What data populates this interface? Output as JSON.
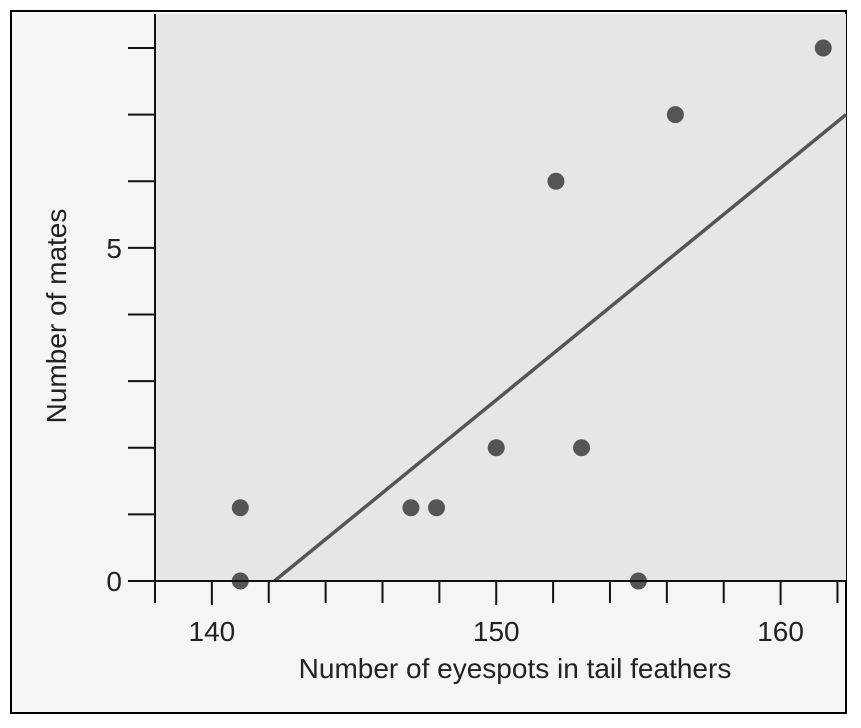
{
  "chart_data": {
    "type": "scatter",
    "title": "",
    "xlabel": "Number of eyespots in tail feathers",
    "ylabel": "Number of mates",
    "xlim": [
      138,
      162.3
    ],
    "ylim": [
      0,
      8.3
    ],
    "x_ticks_labeled": [
      140,
      150,
      160
    ],
    "x_minor_tick_step": 2,
    "y_ticks_labeled": [
      0,
      5
    ],
    "y_minor_tick_step": 1,
    "points": [
      {
        "x": 141,
        "y": 1.1
      },
      {
        "x": 141,
        "y": 0
      },
      {
        "x": 147,
        "y": 1.1
      },
      {
        "x": 147.9,
        "y": 1.1
      },
      {
        "x": 150,
        "y": 2
      },
      {
        "x": 152.1,
        "y": 6
      },
      {
        "x": 153,
        "y": 2
      },
      {
        "x": 155,
        "y": 0
      },
      {
        "x": 156.3,
        "y": 7
      },
      {
        "x": 161.5,
        "y": 8
      }
    ],
    "trendline": {
      "x1": 142.2,
      "y1": 0,
      "x2": 162.3,
      "y2": 7
    },
    "colors": {
      "plot_background": "#e6e6e6",
      "outer_background": "#f5f5f5",
      "points": "#555555",
      "trendline": "#555555",
      "axes": "#111111"
    }
  }
}
